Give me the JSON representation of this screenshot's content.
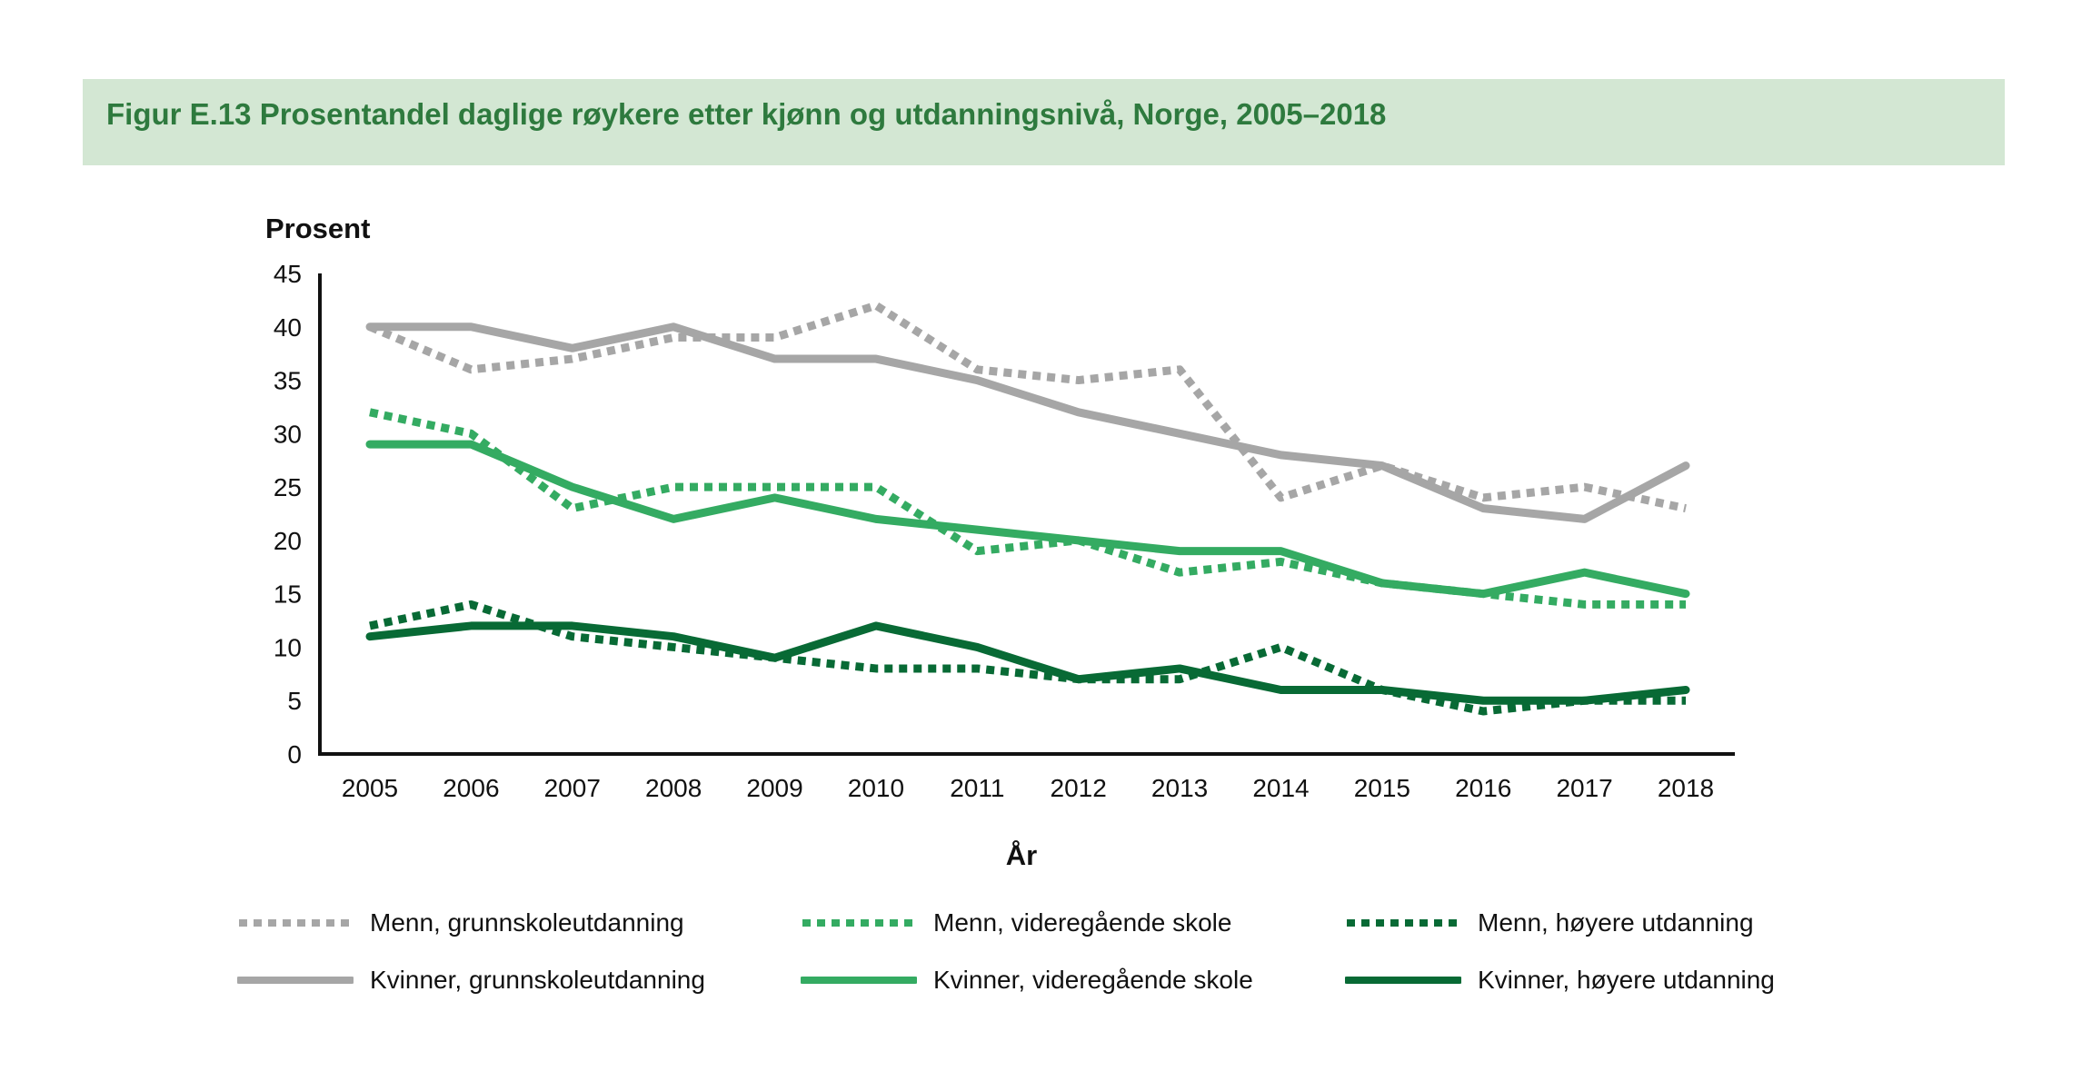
{
  "chart_data": {
    "type": "line",
    "title": "Figur E.13 Prosentandel daglige røykere etter kjønn og utdanningsnivå, Norge, 2005–2018",
    "xlabel": "År",
    "ylabel": "Prosent",
    "ylim": [
      0,
      45
    ],
    "yticks": [
      0,
      5,
      10,
      15,
      20,
      25,
      30,
      35,
      40,
      45
    ],
    "grid": false,
    "legend_position": "bottom",
    "x": [
      2005,
      2006,
      2007,
      2008,
      2009,
      2010,
      2011,
      2012,
      2013,
      2014,
      2015,
      2016,
      2017,
      2018
    ],
    "series": [
      {
        "name": "Menn, grunnskoleutdanning",
        "color": "#a6a6a6",
        "style": "dotted",
        "values": [
          40,
          36,
          37,
          39,
          39,
          42,
          36,
          35,
          36,
          24,
          27,
          24,
          25,
          23
        ]
      },
      {
        "name": "Menn, videregående skole",
        "color": "#34ab62",
        "style": "dotted",
        "values": [
          32,
          30,
          23,
          25,
          25,
          25,
          19,
          20,
          17,
          18,
          16,
          15,
          14,
          14
        ]
      },
      {
        "name": "Menn, høyere utdanning",
        "color": "#086a35",
        "style": "dotted",
        "values": [
          12,
          14,
          11,
          10,
          9,
          8,
          8,
          7,
          7,
          10,
          6,
          4,
          5,
          5
        ]
      },
      {
        "name": "Kvinner, grunnskoleutdanning",
        "color": "#a6a6a6",
        "style": "solid",
        "values": [
          40,
          40,
          38,
          40,
          37,
          37,
          35,
          32,
          30,
          28,
          27,
          23,
          22,
          27
        ]
      },
      {
        "name": "Kvinner, videregående skole",
        "color": "#34ab62",
        "style": "solid",
        "values": [
          29,
          29,
          25,
          22,
          24,
          22,
          21,
          20,
          19,
          19,
          16,
          15,
          17,
          15
        ]
      },
      {
        "name": "Kvinner, høyere utdanning",
        "color": "#086a35",
        "style": "solid",
        "values": [
          11,
          12,
          12,
          11,
          9,
          12,
          10,
          7,
          8,
          6,
          6,
          5,
          5,
          6
        ]
      }
    ]
  }
}
